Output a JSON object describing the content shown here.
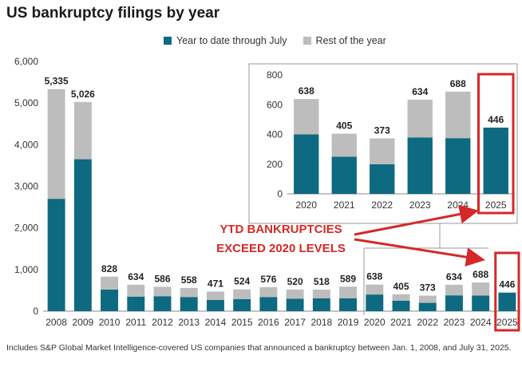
{
  "title": "US bankruptcy filings by year",
  "footnote": "Includes S&P Global Market Intelligence-covered US companies that announced a bankruptcy between Jan. 1, 2008, and July 31, 2025.",
  "colors": {
    "ytd": "#0e6a80",
    "rest": "#bdbdbd",
    "highlight": "#d62828",
    "axis": "#666666"
  },
  "chart_data": [
    {
      "type": "bar",
      "stacked": true,
      "categories": [
        "2008",
        "2009",
        "2010",
        "2011",
        "2012",
        "2013",
        "2014",
        "2015",
        "2016",
        "2017",
        "2018",
        "2019",
        "2020",
        "2021",
        "2022",
        "2023",
        "2024",
        "2025"
      ],
      "series": [
        {
          "name": "Year to date through July",
          "values": [
            2700,
            3650,
            520,
            350,
            360,
            340,
            270,
            290,
            340,
            300,
            310,
            310,
            400,
            250,
            200,
            380,
            375,
            446
          ]
        },
        {
          "name": "Rest of the year",
          "values": [
            2635,
            1376,
            308,
            284,
            226,
            218,
            201,
            234,
            236,
            220,
            208,
            279,
            238,
            155,
            173,
            254,
            313,
            0
          ]
        }
      ],
      "totals": [
        5335,
        5026,
        828,
        634,
        586,
        558,
        471,
        524,
        576,
        520,
        518,
        589,
        638,
        405,
        373,
        634,
        688,
        446
      ],
      "total_labels": [
        "5,335",
        "5,026",
        "828",
        "634",
        "586",
        "558",
        "471",
        "524",
        "576",
        "520",
        "518",
        "589",
        "638",
        "405",
        "373",
        "634",
        "688",
        "446"
      ],
      "ylim": [
        0,
        6000
      ],
      "yticks": [
        0,
        1000,
        2000,
        3000,
        4000,
        5000,
        6000
      ],
      "ytick_labels": [
        "0",
        "1,000",
        "2,000",
        "3,000",
        "4,000",
        "5,000",
        "6,000"
      ],
      "legend_position": "top",
      "highlight_category": "2025",
      "grid": false
    },
    {
      "type": "bar",
      "stacked": true,
      "inset": true,
      "categories": [
        "2020",
        "2021",
        "2022",
        "2023",
        "2024",
        "2025"
      ],
      "series": [
        {
          "name": "Year to date through July",
          "values": [
            400,
            250,
            200,
            380,
            375,
            446
          ]
        },
        {
          "name": "Rest of the year",
          "values": [
            238,
            155,
            173,
            254,
            313,
            0
          ]
        }
      ],
      "total_labels": [
        "638",
        "405",
        "373",
        "634",
        "688",
        "446"
      ],
      "ylim": [
        0,
        800
      ],
      "yticks": [
        0,
        200,
        400,
        600,
        800
      ],
      "ytick_labels": [
        "0",
        "200",
        "400",
        "600",
        "800"
      ],
      "highlight_category": "2025"
    }
  ],
  "annotation": {
    "line1": "YTD BANKRUPTCIES",
    "line2": "EXCEED 2020 LEVELS"
  }
}
